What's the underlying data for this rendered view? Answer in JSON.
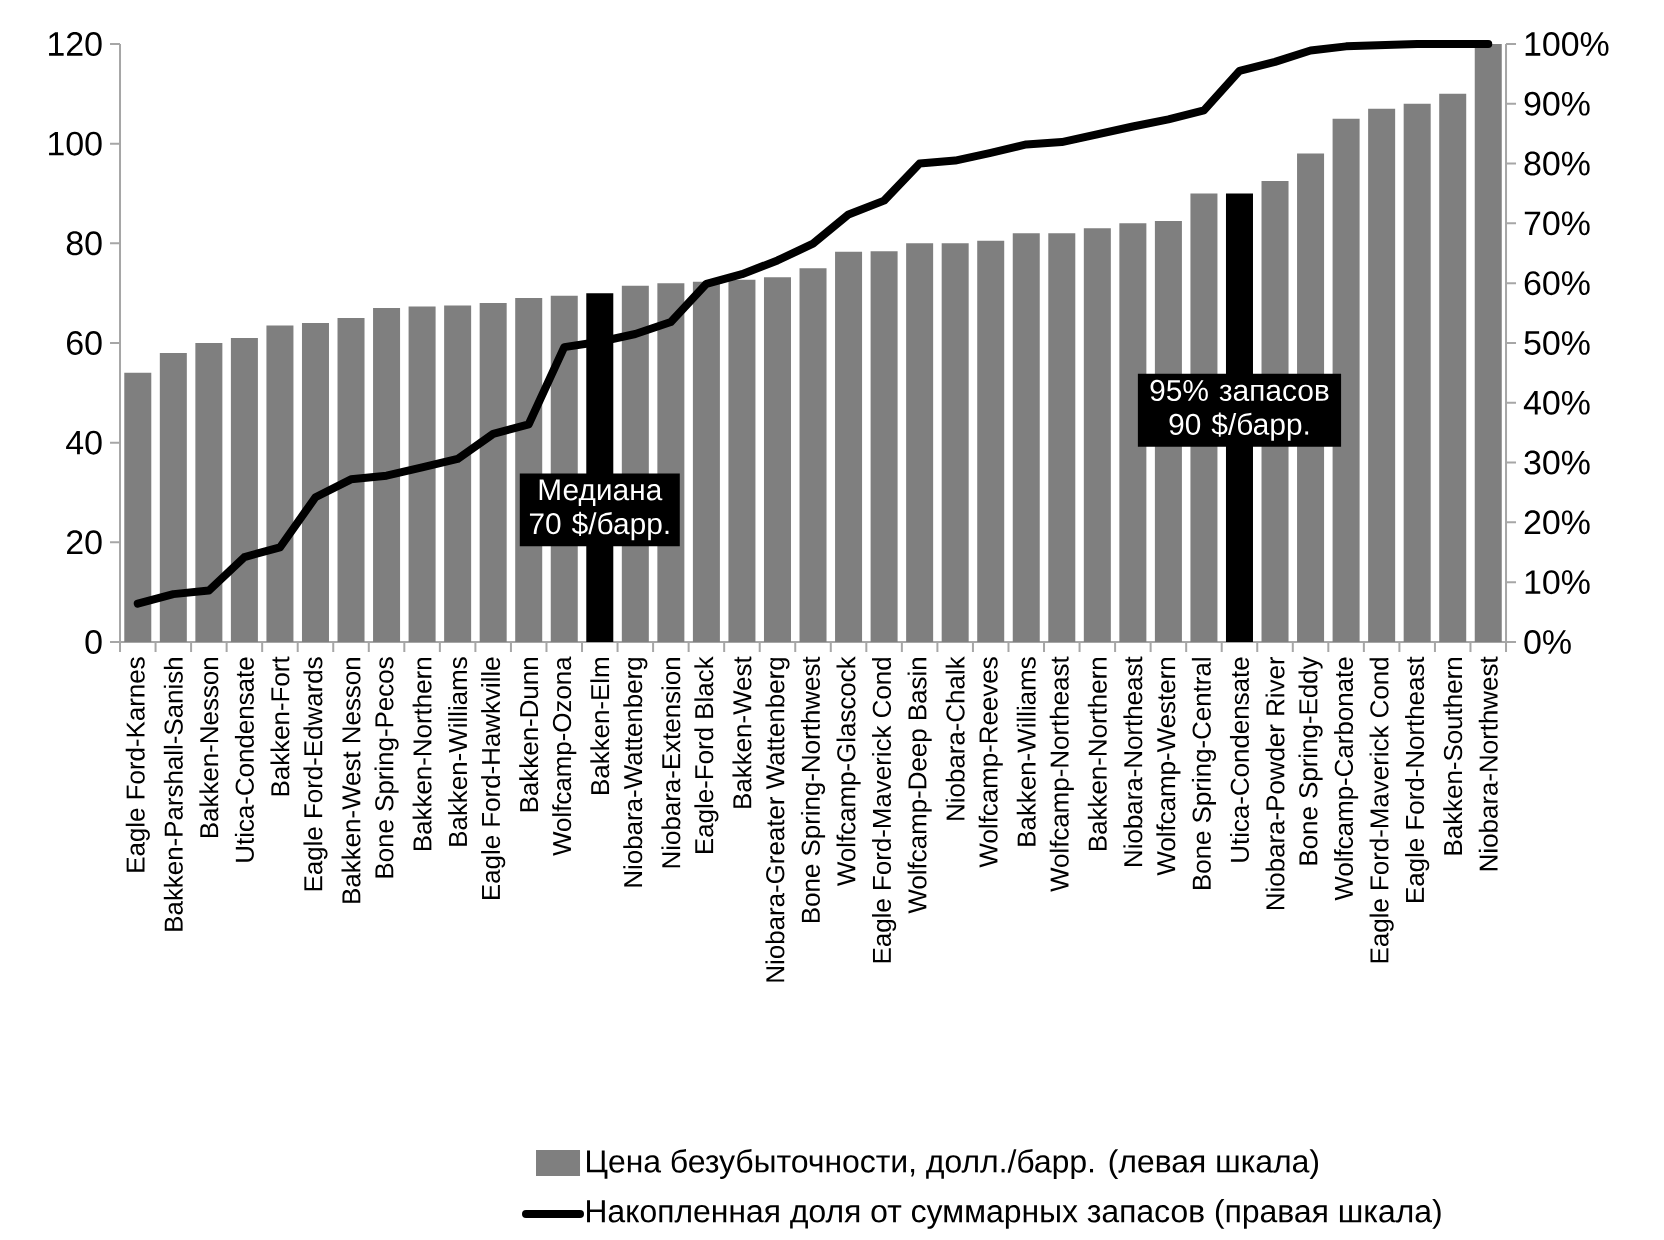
{
  "chart_data": {
    "type": "bar",
    "categories": [
      "Eagle Ford-Karnes",
      "Bakken-Parshall-Sanish",
      "Bakken-Nesson",
      "Utica-Condensate",
      "Bakken-Fort",
      "Eagle Ford-Edwards",
      "Bakken-West Nesson",
      "Bone Spring-Pecos",
      "Bakken-Northern",
      "Bakken-Williams",
      "Eagle Ford-Hawkville",
      "Bakken-Dunn",
      "Wolfcamp-Ozona",
      "Bakken-Elm",
      "Niobara-Wattenberg",
      "Niobara-Extension",
      "Eagle-Ford Black",
      "Bakken-West",
      "Niobara-Greater Wattenberg",
      "Bone Spring-Northwest",
      "Wolfcamp-Glascock",
      "Eagle Ford-Maverick Cond",
      "Wolfcamp-Deep Basin",
      "Niobara-Chalk",
      "Wolfcamp-Reeves",
      "Bakken-Williams",
      "Wolfcamp-Northeast",
      "Bakken-Northern",
      "Niobara-Northeast",
      "Wolfcamp-Western",
      "Bone Spring-Central",
      "Utica-Condensate",
      "Niobara-Powder River",
      "Bone Spring-Eddy",
      "Wolfcamp-Carbonate",
      "Eagle Ford-Maverick Cond",
      "Eagle Ford-Northeast",
      "Bakken-Southern",
      "Niobara-Northwest"
    ],
    "series": [
      {
        "name": "Цена безубыточности, долл./барр. (левая шкала)",
        "color": "#7f7f7f",
        "colors": [
          "#7f7f7f",
          "#7f7f7f",
          "#7f7f7f",
          "#7f7f7f",
          "#7f7f7f",
          "#7f7f7f",
          "#7f7f7f",
          "#7f7f7f",
          "#7f7f7f",
          "#7f7f7f",
          "#7f7f7f",
          "#7f7f7f",
          "#7f7f7f",
          "#000000",
          "#7f7f7f",
          "#7f7f7f",
          "#7f7f7f",
          "#7f7f7f",
          "#7f7f7f",
          "#7f7f7f",
          "#7f7f7f",
          "#7f7f7f",
          "#7f7f7f",
          "#7f7f7f",
          "#7f7f7f",
          "#7f7f7f",
          "#7f7f7f",
          "#7f7f7f",
          "#7f7f7f",
          "#7f7f7f",
          "#7f7f7f",
          "#000000",
          "#7f7f7f",
          "#7f7f7f",
          "#7f7f7f",
          "#7f7f7f",
          "#7f7f7f",
          "#7f7f7f",
          "#7f7f7f"
        ],
        "values": [
          54,
          58,
          60,
          61,
          63.5,
          64,
          65,
          67,
          67.3,
          67.5,
          68,
          69,
          69.5,
          70,
          71.5,
          72,
          72.3,
          72.7,
          73.2,
          75,
          78.3,
          78.4,
          80,
          80,
          80.5,
          82,
          82,
          83,
          84,
          84.5,
          90,
          90,
          92.5,
          98,
          105,
          107,
          108,
          110,
          120
        ]
      },
      {
        "name": "Накопленная доля от суммарных запасов (правая шкала)",
        "type": "line",
        "axis": "y2",
        "color": "#000000",
        "values": [
          6.4,
          8,
          8.6,
          14.2,
          15.8,
          24.2,
          27.2,
          27.8,
          29.2,
          30.6,
          34.8,
          36.4,
          49.3,
          50.2,
          51.5,
          53.5,
          59.9,
          61.5,
          63.8,
          66.6,
          71.5,
          73.8,
          80,
          80.5,
          81.8,
          83.2,
          83.6,
          84.9,
          86.2,
          87.4,
          88.9,
          95.5,
          97,
          98.9,
          99.6,
          99.8,
          100,
          100,
          100
        ]
      }
    ],
    "ylim": [
      0,
      120
    ],
    "yticks": [
      0,
      20,
      40,
      60,
      80,
      100,
      120
    ],
    "y2lim": [
      0,
      100
    ],
    "y2ticks": [
      {
        "value": 0,
        "label": "0%"
      },
      {
        "value": 10,
        "label": "10%"
      },
      {
        "value": 20,
        "label": "20%"
      },
      {
        "value": 30,
        "label": "30%"
      },
      {
        "value": 40,
        "label": "40%"
      },
      {
        "value": 50,
        "label": "50%"
      },
      {
        "value": 60,
        "label": "60%"
      },
      {
        "value": 70,
        "label": "70%"
      },
      {
        "value": 80,
        "label": "80%"
      },
      {
        "value": 90,
        "label": "90%"
      },
      {
        "value": 100,
        "label": "100%"
      }
    ],
    "annotations": [
      "Медиана 70 $/барр.",
      "95% запасов 90 $/барр."
    ],
    "legend": "bottom",
    "grid": false
  }
}
